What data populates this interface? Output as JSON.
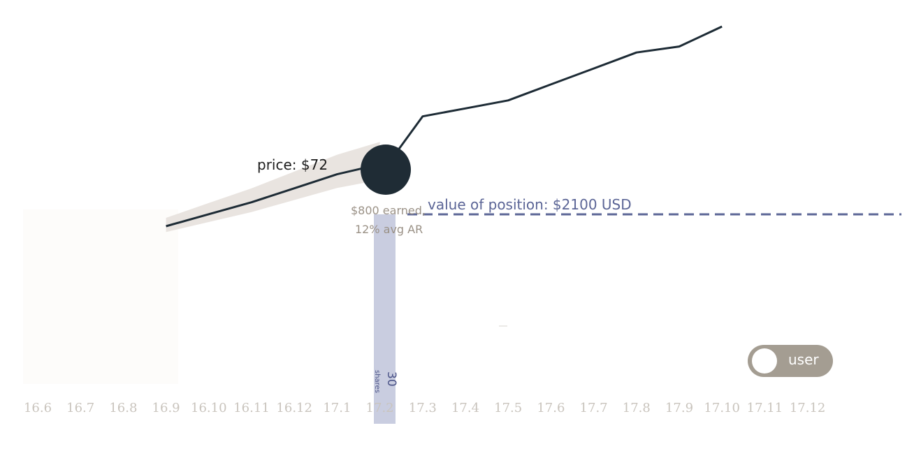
{
  "chart_data": {
    "type": "line",
    "x_ticks": [
      "16.6",
      "16.7",
      "16.8",
      "16.9",
      "16.10",
      "16.11",
      "16.12",
      "17.1",
      "17.2",
      "17.3",
      "17.4",
      "17.5",
      "17.6",
      "17.7",
      "17.8",
      "17.9",
      "17.10",
      "17.11",
      "17.12"
    ],
    "series": [
      {
        "x": [
          3,
          4,
          5,
          6,
          7,
          8,
          8.15,
          9,
          10,
          11,
          12,
          13,
          14,
          15,
          15.5,
          16
        ],
        "y": [
          0.0,
          0.06,
          0.12,
          0.19,
          0.26,
          0.31,
          0.3,
          0.55,
          0.59,
          0.63,
          0.71,
          0.79,
          0.87,
          0.9,
          0.95,
          1.0
        ]
      }
    ],
    "marker": {
      "x": 8,
      "label": "price: $72",
      "earned": "$800 earned,",
      "avg_return": "12% avg AR"
    },
    "position": {
      "label": "value of position:  $2100 USD"
    },
    "shares": {
      "count": "30",
      "unit": "shares"
    },
    "colors": {
      "line": "#1d2b35",
      "band": "#e9e4e0",
      "marker": "#1f2c35",
      "position": "#5b6596",
      "shares_bar": "#c9cde0"
    }
  },
  "toggle": {
    "label": "user"
  }
}
